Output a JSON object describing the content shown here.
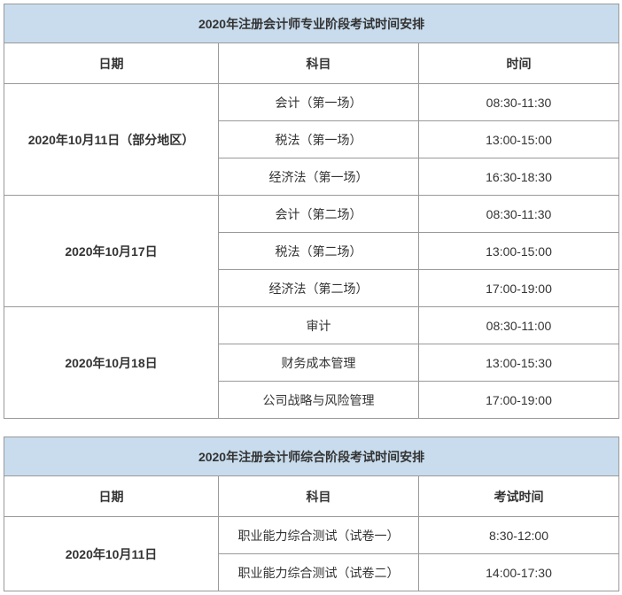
{
  "colors": {
    "title_bg": "#c8dced",
    "border": "#999999",
    "text": "#333333",
    "background": "#ffffff"
  },
  "table1": {
    "title": "2020年注册会计师专业阶段考试时间安排",
    "headers": {
      "date": "日期",
      "subject": "科目",
      "time": "时间"
    },
    "groups": [
      {
        "date": "2020年10月11日（部分地区）",
        "rows": [
          {
            "subject": "会计（第一场）",
            "time": "08:30-11:30"
          },
          {
            "subject": "税法（第一场）",
            "time": "13:00-15:00"
          },
          {
            "subject": "经济法（第一场）",
            "time": "16:30-18:30"
          }
        ]
      },
      {
        "date": "2020年10月17日",
        "rows": [
          {
            "subject": "会计（第二场）",
            "time": "08:30-11:30"
          },
          {
            "subject": "税法（第二场）",
            "time": "13:00-15:00"
          },
          {
            "subject": "经济法（第二场）",
            "time": "17:00-19:00"
          }
        ]
      },
      {
        "date": "2020年10月18日",
        "rows": [
          {
            "subject": "审计",
            "time": "08:30-11:00"
          },
          {
            "subject": "财务成本管理",
            "time": "13:00-15:30"
          },
          {
            "subject": "公司战略与风险管理",
            "time": "17:00-19:00"
          }
        ]
      }
    ]
  },
  "table2": {
    "title": "2020年注册会计师综合阶段考试时间安排",
    "headers": {
      "date": "日期",
      "subject": "科目",
      "time": "考试时间"
    },
    "groups": [
      {
        "date": "2020年10月11日",
        "rows": [
          {
            "subject": "职业能力综合测试（试卷一）",
            "time": "8:30-12:00"
          },
          {
            "subject": "职业能力综合测试（试卷二）",
            "time": "14:00-17:30"
          }
        ]
      }
    ]
  }
}
